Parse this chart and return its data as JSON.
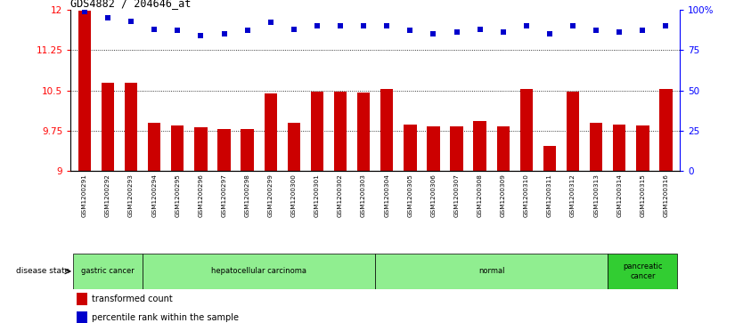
{
  "title": "GDS4882 / 204646_at",
  "samples": [
    "GSM1200291",
    "GSM1200292",
    "GSM1200293",
    "GSM1200294",
    "GSM1200295",
    "GSM1200296",
    "GSM1200297",
    "GSM1200298",
    "GSM1200299",
    "GSM1200300",
    "GSM1200301",
    "GSM1200302",
    "GSM1200303",
    "GSM1200304",
    "GSM1200305",
    "GSM1200306",
    "GSM1200307",
    "GSM1200308",
    "GSM1200309",
    "GSM1200310",
    "GSM1200311",
    "GSM1200312",
    "GSM1200313",
    "GSM1200314",
    "GSM1200315",
    "GSM1200316"
  ],
  "bar_values": [
    11.98,
    10.65,
    10.65,
    9.9,
    9.85,
    9.82,
    9.78,
    9.78,
    10.44,
    9.9,
    10.48,
    10.48,
    10.46,
    10.52,
    9.87,
    9.83,
    9.83,
    9.93,
    9.84,
    10.52,
    9.47,
    10.48,
    9.9,
    9.86,
    9.85,
    10.53
  ],
  "percentile_values": [
    99,
    95,
    93,
    88,
    87,
    84,
    85,
    87,
    92,
    88,
    90,
    90,
    90,
    90,
    87,
    85,
    86,
    88,
    86,
    90,
    85,
    90,
    87,
    86,
    87,
    90
  ],
  "bar_color": "#cc0000",
  "dot_color": "#0000cc",
  "ymin": 9.0,
  "ymax": 12.0,
  "yticks": [
    9.0,
    9.75,
    10.5,
    11.25,
    12.0
  ],
  "ytick_labels": [
    "9",
    "9.75",
    "10.5",
    "11.25",
    "12"
  ],
  "right_yticks": [
    0,
    25,
    50,
    75,
    100
  ],
  "right_ytick_labels": [
    "0",
    "25",
    "50",
    "75",
    "100%"
  ],
  "grid_lines": [
    9.75,
    10.5,
    11.25
  ],
  "disease_groups": [
    {
      "label": "gastric cancer",
      "start": 0,
      "end": 3,
      "color": "#90ee90"
    },
    {
      "label": "hepatocellular carcinoma",
      "start": 3,
      "end": 13,
      "color": "#90ee90"
    },
    {
      "label": "normal",
      "start": 13,
      "end": 23,
      "color": "#90ee90"
    },
    {
      "label": "pancreatic\ncancer",
      "start": 23,
      "end": 26,
      "color": "#32cd32"
    }
  ],
  "legend_items": [
    {
      "color": "#cc0000",
      "label": "transformed count"
    },
    {
      "color": "#0000cc",
      "label": "percentile rank within the sample"
    }
  ],
  "disease_state_label": "disease state",
  "background_color": "#ffffff",
  "plot_bg_color": "#ffffff",
  "tick_area_bg": "#c8c8c8"
}
